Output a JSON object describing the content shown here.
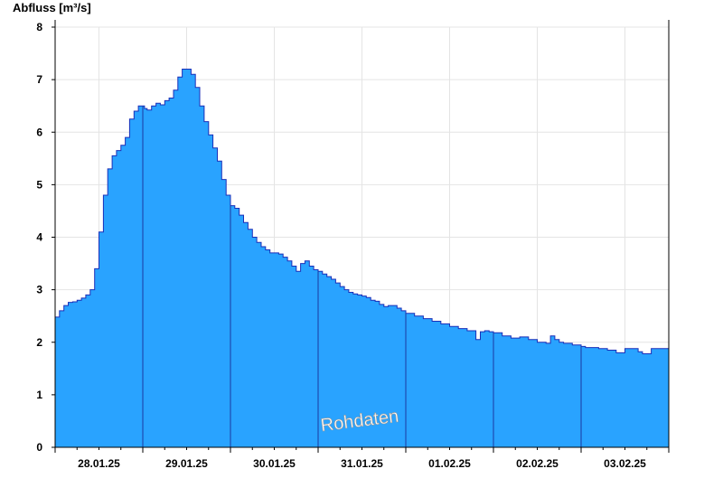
{
  "chart_data": {
    "type": "area",
    "title": "",
    "xlabel": "",
    "ylabel": "Abfluss [m³/s]",
    "ylim": [
      0,
      8
    ],
    "yticks": [
      "0",
      "1",
      "2",
      "3",
      "4",
      "5",
      "6",
      "7",
      "8"
    ],
    "xlim": [
      0,
      7
    ],
    "xtick_labels": [
      "28.01.25",
      "29.01.25",
      "30.01.25",
      "31.01.25",
      "01.02.25",
      "02.02.25",
      "03.02.25"
    ],
    "x_unit": "days from 28.01.25 00:00",
    "grid": true,
    "watermark": "Rohdaten",
    "series": [
      {
        "x": [
          0.0,
          0.05,
          0.1,
          0.15,
          0.2,
          0.25,
          0.3,
          0.35,
          0.4,
          0.45,
          0.5,
          0.55,
          0.6,
          0.65,
          0.7,
          0.75,
          0.8,
          0.85,
          0.9,
          0.95,
          1.0,
          1.02,
          1.05,
          1.08,
          1.1,
          1.15,
          1.2,
          1.25,
          1.3,
          1.35,
          1.4,
          1.45,
          1.5,
          1.55,
          1.6,
          1.65,
          1.7,
          1.75,
          1.8,
          1.85,
          1.9,
          1.95,
          2.0,
          2.05,
          2.1,
          2.15,
          2.2,
          2.25,
          2.3,
          2.35,
          2.4,
          2.45,
          2.5,
          2.55,
          2.6,
          2.65,
          2.7,
          2.75,
          2.8,
          2.85,
          2.9,
          2.95,
          3.0,
          3.05,
          3.1,
          3.15,
          3.2,
          3.25,
          3.3,
          3.35,
          3.4,
          3.45,
          3.5,
          3.55,
          3.6,
          3.65,
          3.7,
          3.75,
          3.8,
          3.85,
          3.9,
          3.95,
          4.0,
          4.1,
          4.2,
          4.3,
          4.4,
          4.5,
          4.6,
          4.7,
          4.8,
          4.85,
          4.9,
          4.95,
          5.0,
          5.1,
          5.2,
          5.3,
          5.4,
          5.5,
          5.6,
          5.65,
          5.7,
          5.75,
          5.8,
          5.9,
          6.0,
          6.05,
          6.1,
          6.2,
          6.3,
          6.4,
          6.5,
          6.6,
          6.65,
          6.7,
          6.8,
          6.9,
          7.0
        ],
        "values": [
          2.48,
          2.6,
          2.7,
          2.76,
          2.77,
          2.8,
          2.84,
          2.9,
          3.0,
          3.4,
          4.1,
          4.8,
          5.3,
          5.55,
          5.65,
          5.75,
          5.9,
          6.25,
          6.4,
          6.5,
          6.5,
          6.45,
          6.42,
          6.42,
          6.5,
          6.55,
          6.52,
          6.6,
          6.65,
          6.8,
          7.05,
          7.2,
          7.2,
          7.1,
          6.85,
          6.5,
          6.2,
          5.95,
          5.7,
          5.45,
          5.1,
          4.8,
          4.6,
          4.55,
          4.42,
          4.28,
          4.15,
          4.0,
          3.9,
          3.82,
          3.76,
          3.7,
          3.7,
          3.68,
          3.62,
          3.55,
          3.45,
          3.35,
          3.5,
          3.55,
          3.45,
          3.38,
          3.35,
          3.3,
          3.25,
          3.2,
          3.13,
          3.06,
          3.0,
          2.95,
          2.92,
          2.9,
          2.88,
          2.85,
          2.8,
          2.78,
          2.72,
          2.68,
          2.7,
          2.7,
          2.65,
          2.6,
          2.55,
          2.5,
          2.45,
          2.4,
          2.35,
          2.3,
          2.26,
          2.22,
          2.05,
          2.2,
          2.22,
          2.2,
          2.18,
          2.12,
          2.08,
          2.1,
          2.05,
          2.0,
          1.98,
          2.12,
          2.05,
          2.0,
          1.98,
          1.95,
          1.92,
          1.9,
          1.9,
          1.88,
          1.85,
          1.8,
          1.88,
          1.88,
          1.82,
          1.78,
          1.88,
          1.88,
          1.9
        ]
      }
    ]
  },
  "colors": {
    "fill": "#29a3ff",
    "line": "#1a2fb8",
    "day_divider": "#1a3aa0",
    "grid": "#e4e4e4",
    "axis": "#000000"
  }
}
